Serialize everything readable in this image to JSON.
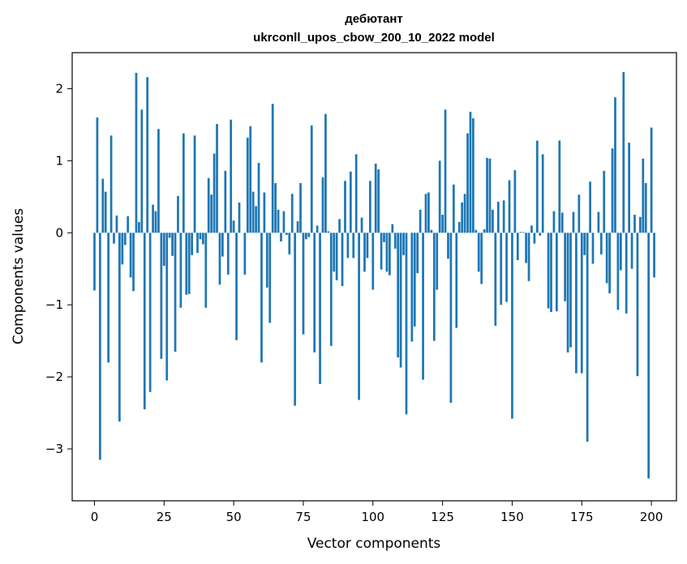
{
  "chart_data": {
    "type": "bar",
    "title_line1": "дебютант",
    "title_line2": "ukrconll_upos_cbow_200_10_2022 model",
    "xlabel": "Vector components",
    "ylabel": "Components values",
    "xlim": [
      -8,
      209
    ],
    "ylim": [
      -3.72,
      2.5
    ],
    "xticks": [
      0,
      25,
      50,
      75,
      100,
      125,
      150,
      175,
      200
    ],
    "xtick_labels": [
      "0",
      "25",
      "50",
      "75",
      "100",
      "125",
      "150",
      "175",
      "200"
    ],
    "yticks": [
      -3,
      -2,
      -1,
      0,
      1,
      2
    ],
    "ytick_labels": [
      "−3",
      "−2",
      "−1",
      "0",
      "1",
      "2"
    ],
    "bar_color": "#1f77b4",
    "grid": false,
    "values": [
      -0.8,
      1.6,
      -3.15,
      0.75,
      0.57,
      -1.8,
      1.35,
      -0.15,
      0.24,
      -2.62,
      -0.44,
      -0.17,
      0.23,
      -0.62,
      -0.81,
      2.22,
      0.15,
      1.71,
      -2.45,
      2.16,
      -2.21,
      0.39,
      0.3,
      1.44,
      -1.75,
      -0.46,
      -2.05,
      -0.07,
      -0.32,
      -1.65,
      0.51,
      -1.04,
      1.38,
      -0.86,
      -0.85,
      -0.31,
      1.35,
      -0.28,
      -0.09,
      -0.16,
      -1.04,
      0.76,
      0.53,
      1.1,
      1.51,
      -0.72,
      -0.33,
      0.86,
      -0.58,
      1.57,
      0.17,
      -1.49,
      0.42,
      0.0,
      -0.58,
      1.32,
      1.48,
      0.57,
      0.37,
      0.97,
      -1.8,
      0.56,
      -0.76,
      -1.25,
      1.79,
      0.69,
      0.32,
      -0.12,
      0.3,
      -0.03,
      -0.3,
      0.54,
      -2.4,
      0.16,
      0.69,
      -1.41,
      -0.09,
      -0.06,
      1.49,
      -1.66,
      0.1,
      -2.1,
      0.77,
      1.65,
      0.02,
      -1.57,
      -0.54,
      -0.66,
      0.19,
      -0.74,
      0.72,
      -0.35,
      0.85,
      -0.35,
      1.09,
      -2.32,
      0.21,
      -0.54,
      -0.35,
      0.72,
      -0.79,
      0.96,
      0.88,
      -0.51,
      -0.13,
      -0.54,
      -0.59,
      0.12,
      -0.22,
      -1.73,
      -1.87,
      -0.31,
      -2.52,
      0.0,
      -1.51,
      -1.3,
      -0.56,
      0.32,
      -2.04,
      0.54,
      0.56,
      0.04,
      -1.5,
      -0.79,
      1.0,
      0.25,
      1.71,
      -0.36,
      -2.36,
      0.67,
      -1.32,
      0.15,
      0.42,
      0.54,
      1.38,
      1.68,
      1.59,
      0.04,
      -0.54,
      -0.71,
      0.05,
      1.04,
      1.03,
      0.32,
      -1.29,
      0.43,
      -1.0,
      0.45,
      -0.96,
      0.73,
      -2.58,
      0.87,
      -0.38,
      0.01,
      0.01,
      -0.42,
      -0.67,
      0.1,
      -0.15,
      1.28,
      -0.04,
      1.09,
      0.0,
      -1.05,
      -1.1,
      0.3,
      -1.09,
      1.28,
      0.28,
      -0.95,
      -1.66,
      -1.59,
      0.29,
      -1.95,
      0.53,
      -1.95,
      -0.31,
      -2.9,
      0.71,
      -0.43,
      0.0,
      0.29,
      -0.3,
      0.86,
      -0.7,
      -0.84,
      1.17,
      1.88,
      -1.07,
      -0.52,
      2.23,
      -1.12,
      1.25,
      -0.5,
      0.25,
      -1.99,
      0.22,
      1.03,
      0.69,
      -3.41,
      1.46,
      -0.62
    ]
  }
}
